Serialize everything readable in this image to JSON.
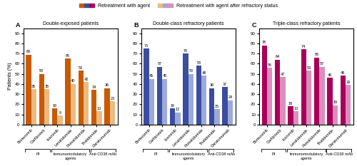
{
  "chart_data": [
    {
      "type": "bar",
      "panel_label": "A",
      "title": "Double-exposed patients",
      "y_label": "Patients (%)",
      "categories": [
        "Bortezomib",
        "Carfilzomib",
        "Ixazomib",
        "Lenalidomide",
        "Pomalidomide",
        "Thalidomide",
        "Daratumumab"
      ],
      "groups": [
        {
          "name": "PI",
          "categories": [
            "Bortezomib",
            "Carfilzomib"
          ]
        },
        {
          "name": "Immunomodulatory\nagents",
          "categories": [
            "Ixazomib",
            "Lenalidomide",
            "Pomalidomide"
          ]
        },
        {
          "name": "Anti-CD38 mAb",
          "categories": [
            "Thalidomide",
            "Daratumumab"
          ]
        }
      ],
      "series": [
        {
          "name": "Retreatment with agent",
          "color": "#C85A00",
          "values": [
            69,
            50,
            16,
            65,
            53,
            34,
            36
          ]
        },
        {
          "name": "Retreatment with agent after refractory status",
          "color": "#EDBA82",
          "values": [
            35,
            35,
            9,
            40,
            42,
            13,
            23
          ]
        }
      ],
      "ylim": [
        0,
        95
      ],
      "yticks": [
        0,
        10,
        20,
        30,
        40,
        50,
        60,
        70,
        80,
        90
      ],
      "data_labels": true
    },
    {
      "type": "bar",
      "panel_label": "B",
      "title": "Double-class refractory patients",
      "categories": [
        "Bortezomib",
        "Carfilzomib",
        "Ixazomib",
        "Lenalidomide",
        "Pomalidomide",
        "Thalidomide",
        "Daratumumab"
      ],
      "groups": [
        {
          "name": "PI",
          "categories": [
            "Bortezomib",
            "Carfilzomib"
          ]
        },
        {
          "name": "Immunomodulatory\nagents",
          "categories": [
            "Ixazomib",
            "Lenalidomide",
            "Pomalidomide"
          ]
        },
        {
          "name": "Anti-CD38 mAb",
          "categories": [
            "Thalidomide",
            "Daratumumab"
          ]
        }
      ],
      "series": [
        {
          "name": "Retreatment with agent",
          "color": "#3B4DA0",
          "values": [
            75,
            57,
            16,
            70,
            58,
            36,
            37
          ]
        },
        {
          "name": "Retreatment with agent after refractory status",
          "color": "#9BAAD8",
          "values": [
            45,
            45,
            12,
            50,
            48,
            15,
            24
          ]
        }
      ],
      "ylim": [
        0,
        95
      ],
      "yticks": [
        0,
        10,
        20,
        30,
        40,
        50,
        60,
        70,
        80,
        90
      ],
      "data_labels": true
    },
    {
      "type": "bar",
      "panel_label": "C",
      "title": "Triple-class refractory patients",
      "categories": [
        "Bortezomib",
        "Carfilzomib",
        "Ixazomib",
        "Lenalidomide",
        "Pomalidomide",
        "Thalidomide",
        "Daratumumab"
      ],
      "groups": [
        {
          "name": "PI",
          "categories": [
            "Bortezomib",
            "Carfilzomib"
          ]
        },
        {
          "name": "Immunomodulatory\nagents",
          "categories": [
            "Ixazomib",
            "Lenalidomide",
            "Pomalidomide"
          ]
        },
        {
          "name": "Anti-CD38 mAb",
          "categories": [
            "Thalidomide",
            "Daratumumab"
          ]
        }
      ],
      "series": [
        {
          "name": "Retreatment with agent",
          "color": "#A8005A",
          "values": [
            78,
            64,
            18,
            74,
            66,
            46,
            48
          ]
        },
        {
          "name": "Retreatment with agent after refractory status",
          "color": "#DC8EBD",
          "values": [
            56,
            47,
            13,
            53,
            57,
            19,
            39
          ]
        }
      ],
      "ylim": [
        0,
        95
      ],
      "yticks": [
        0,
        10,
        20,
        30,
        40,
        50,
        60,
        70,
        80,
        90
      ],
      "data_labels": true
    }
  ]
}
